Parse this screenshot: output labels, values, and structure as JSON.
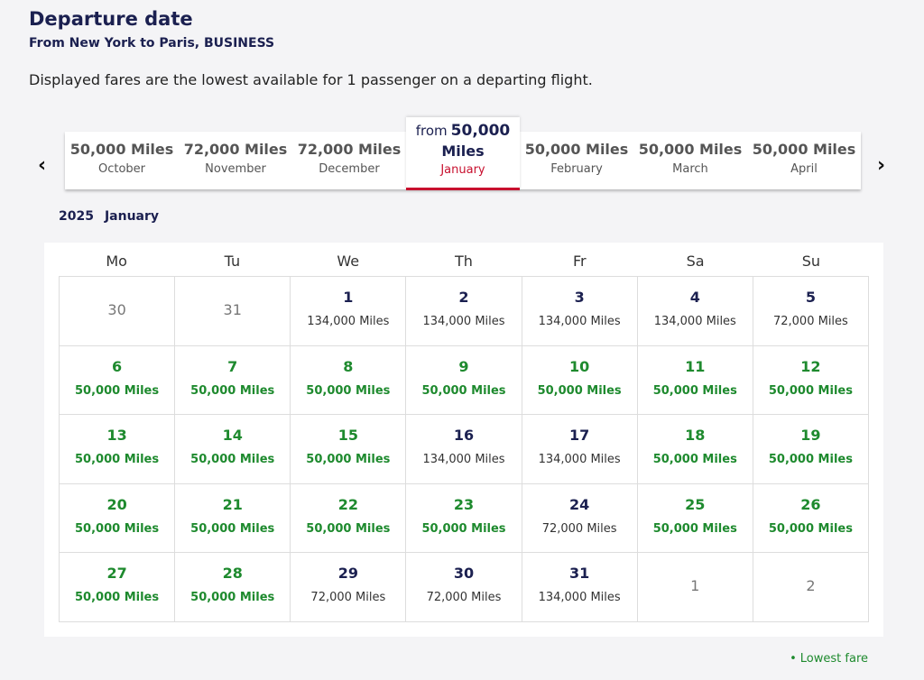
{
  "header": {
    "title": "Departure date",
    "subtitle": "From New York to Paris, BUSINESS",
    "note": "Displayed fares are the lowest available for 1 passenger on a departing flight."
  },
  "months": [
    {
      "fare": "50,000 Miles",
      "month": "October"
    },
    {
      "fare": "72,000 Miles",
      "month": "November"
    },
    {
      "fare": "72,000 Miles",
      "month": "December"
    },
    {
      "prefix": "from",
      "amount": "50,000",
      "unit": "Miles",
      "month": "January",
      "selected": true
    },
    {
      "fare": "50,000 Miles",
      "month": "February"
    },
    {
      "fare": "50,000 Miles",
      "month": "March"
    },
    {
      "fare": "50,000 Miles",
      "month": "April"
    }
  ],
  "calendar": {
    "year": "2025",
    "month": "January",
    "weekdays": [
      "Mo",
      "Tu",
      "We",
      "Th",
      "Fr",
      "Sa",
      "Su"
    ],
    "weeks": [
      [
        {
          "day": "30",
          "outside": true
        },
        {
          "day": "31",
          "outside": true
        },
        {
          "day": "1",
          "fare": "134,000 Miles"
        },
        {
          "day": "2",
          "fare": "134,000 Miles"
        },
        {
          "day": "3",
          "fare": "134,000 Miles"
        },
        {
          "day": "4",
          "fare": "134,000 Miles"
        },
        {
          "day": "5",
          "fare": "72,000 Miles"
        }
      ],
      [
        {
          "day": "6",
          "fare": "50,000 Miles",
          "lowest": true
        },
        {
          "day": "7",
          "fare": "50,000 Miles",
          "lowest": true
        },
        {
          "day": "8",
          "fare": "50,000 Miles",
          "lowest": true
        },
        {
          "day": "9",
          "fare": "50,000 Miles",
          "lowest": true
        },
        {
          "day": "10",
          "fare": "50,000 Miles",
          "lowest": true
        },
        {
          "day": "11",
          "fare": "50,000 Miles",
          "lowest": true
        },
        {
          "day": "12",
          "fare": "50,000 Miles",
          "lowest": true
        }
      ],
      [
        {
          "day": "13",
          "fare": "50,000 Miles",
          "lowest": true
        },
        {
          "day": "14",
          "fare": "50,000 Miles",
          "lowest": true
        },
        {
          "day": "15",
          "fare": "50,000 Miles",
          "lowest": true
        },
        {
          "day": "16",
          "fare": "134,000 Miles"
        },
        {
          "day": "17",
          "fare": "134,000 Miles"
        },
        {
          "day": "18",
          "fare": "50,000 Miles",
          "lowest": true
        },
        {
          "day": "19",
          "fare": "50,000 Miles",
          "lowest": true
        }
      ],
      [
        {
          "day": "20",
          "fare": "50,000 Miles",
          "lowest": true
        },
        {
          "day": "21",
          "fare": "50,000 Miles",
          "lowest": true
        },
        {
          "day": "22",
          "fare": "50,000 Miles",
          "lowest": true
        },
        {
          "day": "23",
          "fare": "50,000 Miles",
          "lowest": true
        },
        {
          "day": "24",
          "fare": "72,000 Miles"
        },
        {
          "day": "25",
          "fare": "50,000 Miles",
          "lowest": true
        },
        {
          "day": "26",
          "fare": "50,000 Miles",
          "lowest": true
        }
      ],
      [
        {
          "day": "27",
          "fare": "50,000 Miles",
          "lowest": true
        },
        {
          "day": "28",
          "fare": "50,000 Miles",
          "lowest": true
        },
        {
          "day": "29",
          "fare": "72,000 Miles"
        },
        {
          "day": "30",
          "fare": "72,000 Miles"
        },
        {
          "day": "31",
          "fare": "134,000 Miles"
        },
        {
          "day": "1",
          "outside": true
        },
        {
          "day": "2",
          "outside": true
        }
      ]
    ]
  },
  "legend": {
    "label": "Lowest fare"
  }
}
